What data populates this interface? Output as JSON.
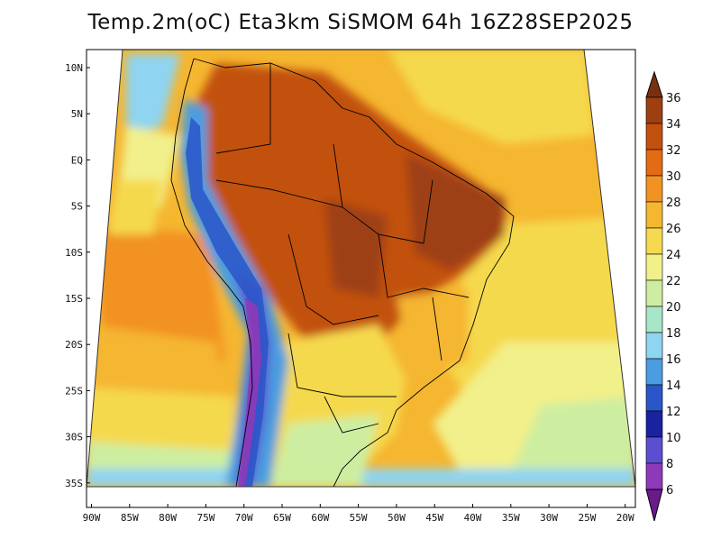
{
  "map": {
    "title": "Temp.2m(oC) Eta3km SiSMOM 64h 16Z28SEP2025",
    "lat_labels": [
      "10N",
      "5N",
      "EQ",
      "5S",
      "10S",
      "15S",
      "20S",
      "25S",
      "30S",
      "35S"
    ],
    "lon_labels": [
      "90W",
      "85W",
      "80W",
      "75W",
      "70W",
      "65W",
      "60W",
      "55W",
      "50W",
      "45W",
      "40W",
      "35W",
      "30W",
      "25W",
      "20W"
    ],
    "colorbar": {
      "labels": [
        "36",
        "34",
        "32",
        "30",
        "28",
        "26",
        "24",
        "22",
        "20",
        "18",
        "16",
        "14",
        "12",
        "10",
        "8",
        "6"
      ],
      "colors": [
        "#7a3010",
        "#9e3f12",
        "#c2510f",
        "#e26b13",
        "#f29224",
        "#f5b630",
        "#f5d94e",
        "#f2f08a",
        "#cdeea0",
        "#a8e6c8",
        "#8fd4f0",
        "#4a9de0",
        "#2a56c8",
        "#1a22a0",
        "#5b4fcf",
        "#8e3ab8",
        "#6a1a8a"
      ],
      "min": 6,
      "max": 36
    }
  }
}
